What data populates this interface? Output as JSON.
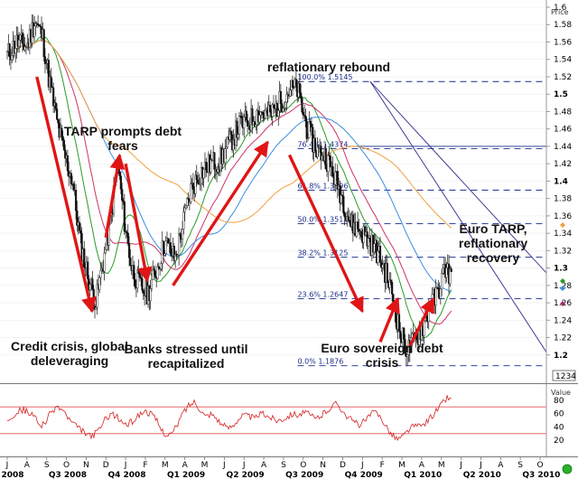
{
  "chart_data": [
    {
      "type": "candlestick",
      "price_axis_title": "Price",
      "ylim": [
        1.18,
        1.6
      ],
      "y_ticks": [
        "1.2",
        "1.22",
        "1.24",
        "1.26",
        "1.28",
        "1.3",
        "1.32",
        "1.34",
        "1.36",
        "1.38",
        "1.4",
        "1.42",
        "1.44",
        "1.46",
        "1.48",
        "1.5",
        "1.52",
        "1.54",
        "1.56",
        "1.58",
        "1.6"
      ],
      "y_ticks_bold": [
        "1.2",
        "1.3",
        "1.4",
        "1.5"
      ],
      "last_value_label": "1234",
      "x_month_labels": [
        "J",
        "A",
        "S",
        "O",
        "N",
        "D",
        "J",
        "F",
        "M",
        "A",
        "M",
        "J",
        "J",
        "A",
        "S",
        "O",
        "N",
        "D",
        "J",
        "F",
        "M",
        "A",
        "M",
        "J",
        "J",
        "A",
        "S",
        "O"
      ],
      "x_period_labels": [
        "2008",
        "Q3 2008",
        "Q4 2008",
        "Q1 2009",
        "Q2 2009",
        "Q3 2009",
        "Q4 2009",
        "Q1 2010",
        "Q2 2010",
        "Q3 2010"
      ],
      "close_path": [
        [
          0,
          1.545
        ],
        [
          0.5,
          1.56
        ],
        [
          1,
          1.555
        ],
        [
          1.4,
          1.585
        ],
        [
          1.8,
          1.565
        ],
        [
          2.1,
          1.52
        ],
        [
          2.5,
          1.47
        ],
        [
          2.9,
          1.43
        ],
        [
          3.3,
          1.4
        ],
        [
          3.7,
          1.33
        ],
        [
          4.1,
          1.29
        ],
        [
          4.5,
          1.26
        ],
        [
          4.8,
          1.3
        ],
        [
          5.2,
          1.35
        ],
        [
          5.6,
          1.42
        ],
        [
          5.9,
          1.36
        ],
        [
          6.3,
          1.3
        ],
        [
          6.7,
          1.28
        ],
        [
          7.1,
          1.27
        ],
        [
          7.6,
          1.3
        ],
        [
          8.0,
          1.33
        ],
        [
          8.5,
          1.31
        ],
        [
          8.9,
          1.35
        ],
        [
          9.3,
          1.39
        ],
        [
          9.8,
          1.41
        ],
        [
          10.3,
          1.42
        ],
        [
          10.8,
          1.425
        ],
        [
          11.3,
          1.445
        ],
        [
          11.8,
          1.465
        ],
        [
          12.3,
          1.47
        ],
        [
          12.8,
          1.48
        ],
        [
          13.3,
          1.475
        ],
        [
          13.8,
          1.49
        ],
        [
          14.3,
          1.505
        ],
        [
          14.7,
          1.505
        ],
        [
          15.2,
          1.46
        ],
        [
          15.7,
          1.435
        ],
        [
          16.1,
          1.43
        ],
        [
          16.5,
          1.41
        ],
        [
          17.0,
          1.38
        ],
        [
          17.4,
          1.35
        ],
        [
          17.8,
          1.345
        ],
        [
          18.2,
          1.335
        ],
        [
          18.7,
          1.32
        ],
        [
          19.1,
          1.3
        ],
        [
          19.5,
          1.27
        ],
        [
          19.9,
          1.225
        ],
        [
          20.3,
          1.205
        ],
        [
          20.6,
          1.215
        ],
        [
          21.0,
          1.23
        ],
        [
          21.4,
          1.255
        ],
        [
          21.8,
          1.27
        ],
        [
          22.2,
          1.3
        ],
        [
          22.5,
          1.29
        ]
      ],
      "moving_averages": [
        {
          "color": "#2a9a2a",
          "smoothing": 4
        },
        {
          "color": "#cc3366",
          "smoothing": 7
        },
        {
          "color": "#3a8fe0",
          "smoothing": 14
        },
        {
          "color": "#f0a040",
          "smoothing": 26
        }
      ],
      "fibonacci_levels": [
        {
          "label": "100.0%",
          "value": "1.5145"
        },
        {
          "label": "76.4%",
          "value": "1.4374"
        },
        {
          "label": "61.8%",
          "value": "1.3896"
        },
        {
          "label": "50.0%",
          "value": "1.3511"
        },
        {
          "label": "38.2%",
          "value": "1.3125"
        },
        {
          "label": "23.6%",
          "value": "1.2647"
        },
        {
          "label": "0.0%",
          "value": "1.1876"
        }
      ],
      "annotations": {
        "credit_crisis": [
          "Credit crisis, global",
          "deleveraging"
        ],
        "tarp_debt": [
          "TARP prompts debt",
          "fears"
        ],
        "banks_stressed": [
          "Banks stressed until",
          "recapitalized"
        ],
        "reflationary_rebound": [
          "reflationary rebound"
        ],
        "euro_sovereign": [
          "Euro sovereign debt",
          "crisis"
        ],
        "euro_tarp": [
          "Euro TARP,",
          "reflationary",
          "recovery"
        ]
      }
    },
    {
      "type": "line",
      "axis_title": "Value",
      "ylim": [
        0,
        100
      ],
      "y_ticks": [
        "20",
        "40",
        "60",
        "80"
      ],
      "levels": [
        30,
        70
      ],
      "series": [
        {
          "color": "#d42020",
          "values": [
            52,
            58,
            63,
            66,
            60,
            55,
            42,
            48,
            62,
            70,
            66,
            54,
            44,
            38,
            32,
            26,
            30,
            40,
            54,
            60,
            54,
            46,
            44,
            50,
            58,
            64,
            60,
            52,
            36,
            28,
            30,
            44,
            62,
            72,
            78,
            68,
            56,
            60,
            54,
            44,
            38,
            42,
            52,
            58,
            56,
            52,
            60,
            58,
            54,
            50,
            52,
            56,
            60,
            58,
            62,
            58,
            52,
            56,
            64,
            70,
            76,
            64,
            54,
            48,
            44,
            48,
            58,
            62,
            54,
            40,
            28,
            22,
            26,
            36,
            42,
            40,
            46,
            54,
            64,
            74,
            84,
            80
          ]
        }
      ]
    }
  ]
}
